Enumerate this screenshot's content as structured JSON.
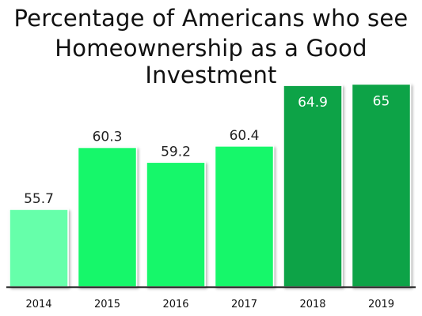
{
  "chart_data": {
    "type": "bar",
    "title_lines": [
      "Percentage of Americans who see",
      "Homeownership as a Good Investment"
    ],
    "categories": [
      "2014",
      "2015",
      "2016",
      "2017",
      "2018",
      "2019"
    ],
    "values": [
      55.7,
      60.3,
      59.2,
      60.4,
      64.9,
      65
    ],
    "value_labels": [
      "55.7",
      "60.3",
      "59.2",
      "60.4",
      "64.9",
      "65"
    ],
    "colors": [
      "#66ffaa",
      "#19f76b",
      "#19f76b",
      "#19f76b",
      "#0da347",
      "#0da347"
    ],
    "label_inside": [
      false,
      false,
      false,
      false,
      true,
      true
    ],
    "xlabel": "",
    "ylabel": "",
    "grid": false,
    "legend": "none"
  }
}
